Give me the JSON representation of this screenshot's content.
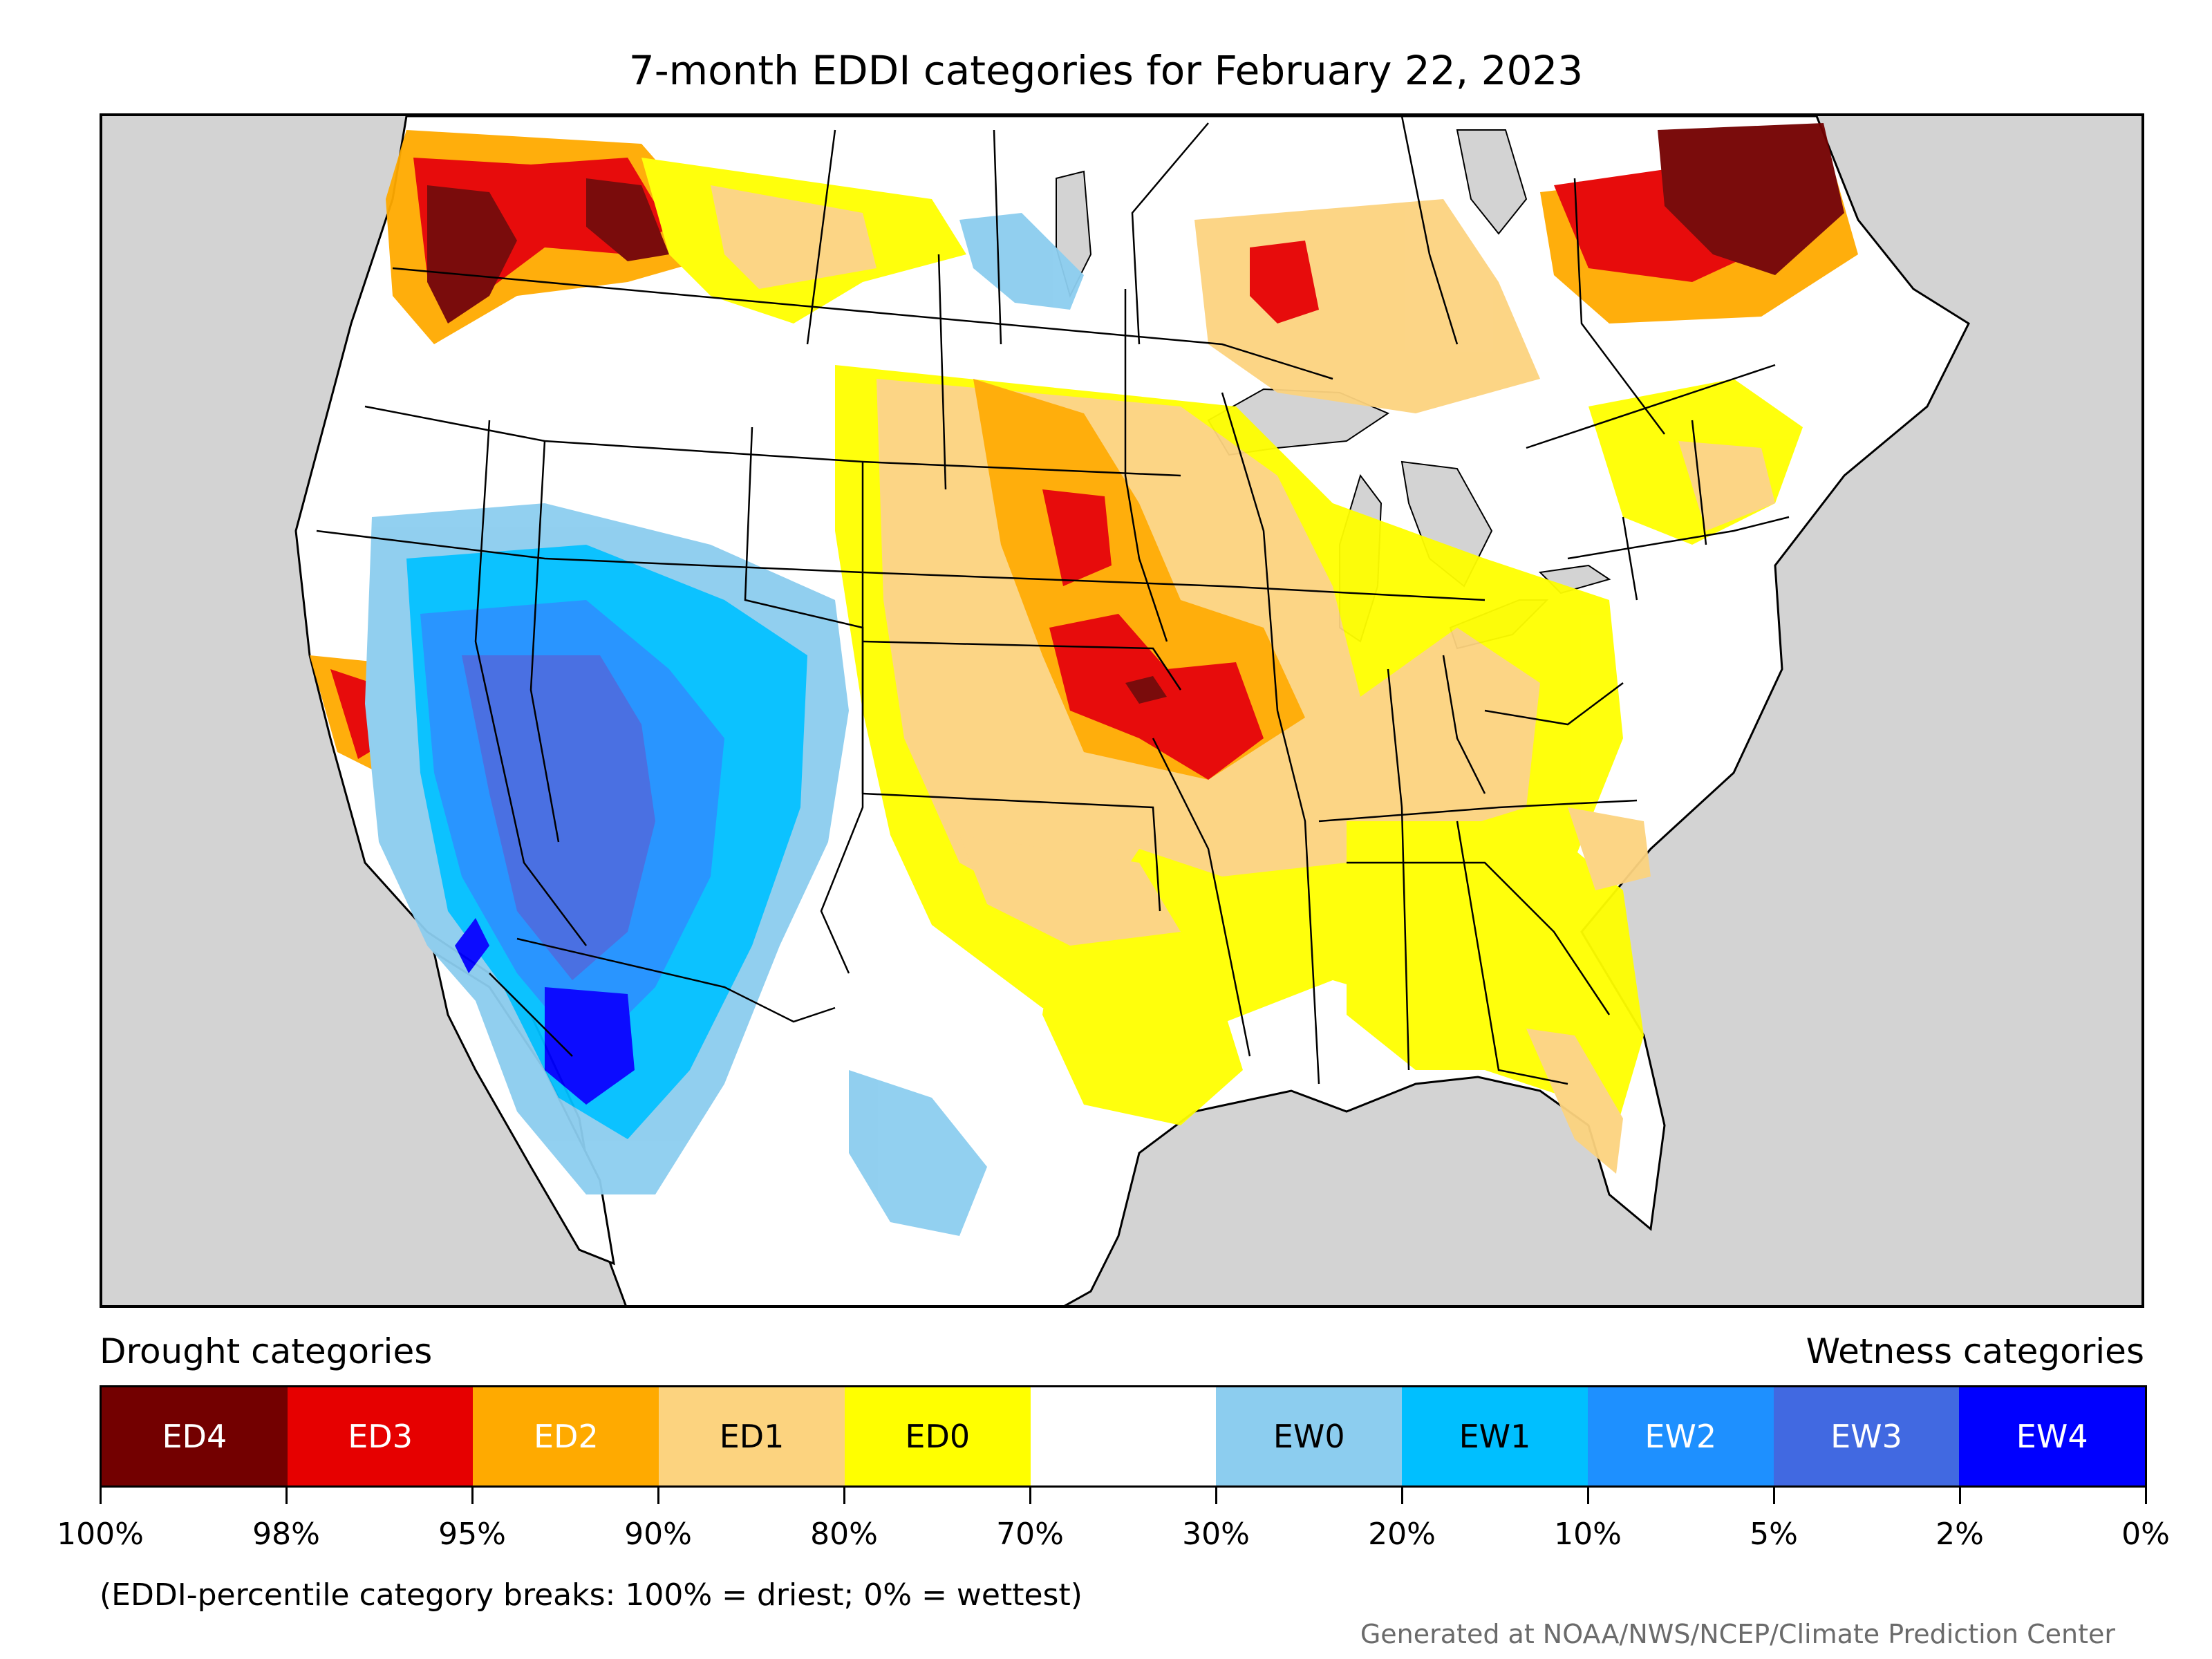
{
  "title": "7-month EDDI categories for February 22, 2023",
  "legend": {
    "drought_label": "Drought categories",
    "wetness_label": "Wetness categories",
    "categories": [
      {
        "label": "ED4",
        "color": "#730000",
        "text_color": "#ffffff"
      },
      {
        "label": "ED3",
        "color": "#e60000",
        "text_color": "#ffffff"
      },
      {
        "label": "ED2",
        "color": "#ffaa00",
        "text_color": "#ffffff"
      },
      {
        "label": "ED1",
        "color": "#fcd37f",
        "text_color": "#000000"
      },
      {
        "label": "ED0",
        "color": "#ffff00",
        "text_color": "#000000"
      },
      {
        "label": "",
        "color": "#ffffff",
        "text_color": "#000000"
      },
      {
        "label": "EW0",
        "color": "#8ccdef",
        "text_color": "#000000"
      },
      {
        "label": "EW1",
        "color": "#00bfff",
        "text_color": "#000000"
      },
      {
        "label": "EW2",
        "color": "#1e90ff",
        "text_color": "#ffffff"
      },
      {
        "label": "EW3",
        "color": "#4169e1",
        "text_color": "#ffffff"
      },
      {
        "label": "EW4",
        "color": "#0000ff",
        "text_color": "#ffffff"
      }
    ],
    "breaks": [
      "100%",
      "98%",
      "95%",
      "90%",
      "80%",
      "70%",
      "30%",
      "20%",
      "10%",
      "5%",
      "2%",
      "0%"
    ]
  },
  "note": "(EDDI-percentile category breaks: 100% = driest; 0% = wettest)",
  "credit": "Generated at NOAA/NWS/NCEP/Climate Prediction Center",
  "map": {
    "ocean_color": "#d3d3d3",
    "land_color": "#ffffff",
    "region_summary": [
      {
        "region": "Pacific Northwest",
        "category": "ED4"
      },
      {
        "region": "Southern Canada (Ontario/Quebec)",
        "category": "ED4"
      },
      {
        "region": "Great Plains and Midwest",
        "category": "ED1"
      },
      {
        "region": "Nebraska and Iowa",
        "category": "ED3"
      },
      {
        "region": "Great Basin and Southwest",
        "category": "EW2"
      },
      {
        "region": "Southern Arizona",
        "category": "EW4"
      },
      {
        "region": "Southeast",
        "category": "ED0"
      }
    ]
  }
}
